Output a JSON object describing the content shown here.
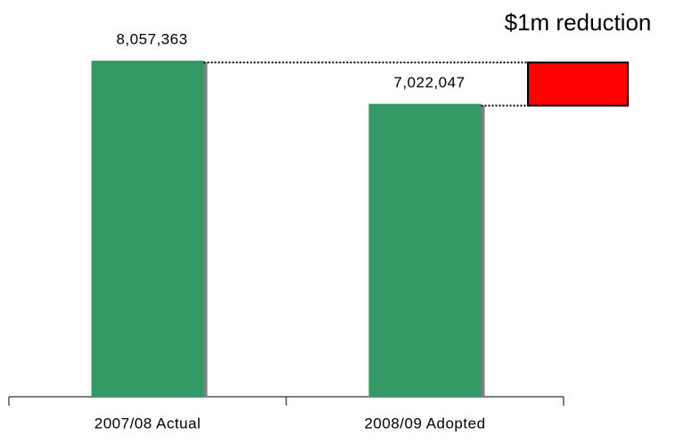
{
  "chart_data": {
    "type": "bar",
    "categories": [
      "2007/08 Actual",
      "2008/09 Adopted"
    ],
    "values": [
      8057363,
      7022047
    ],
    "value_labels": [
      "8,057,363",
      "7,022,047"
    ],
    "color": "#339966",
    "ylim": [
      0,
      9000000
    ],
    "annotation": "$1m reduction",
    "reduction_color": "#ff0000"
  }
}
